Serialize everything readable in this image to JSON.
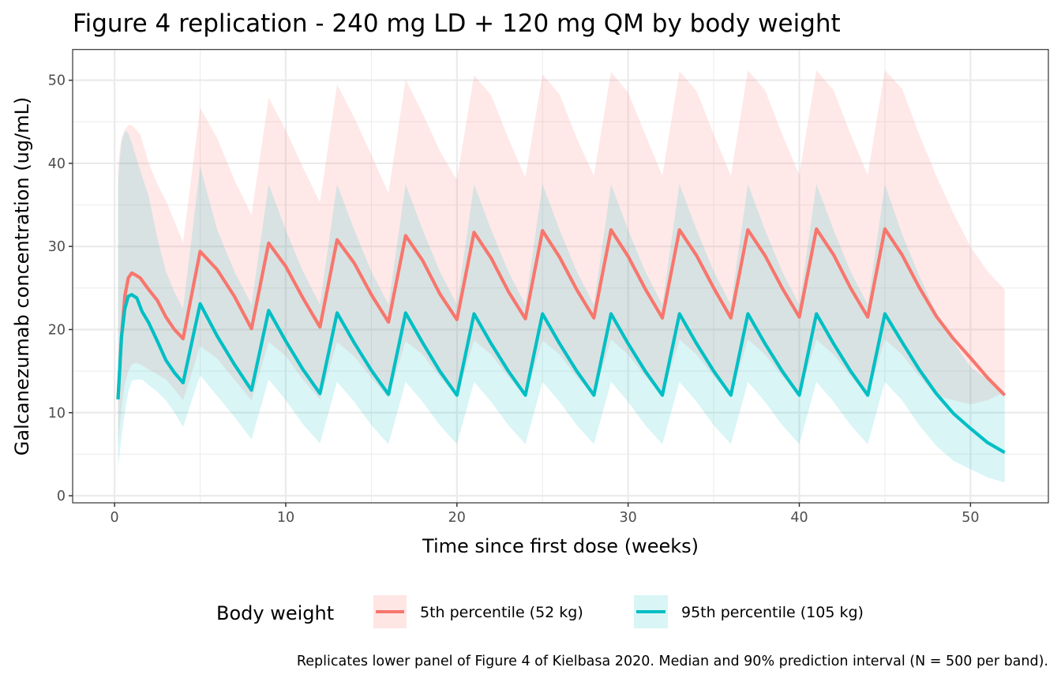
{
  "chart_data": {
    "type": "line",
    "title": "Figure 4 replication - 240 mg LD + 120 mg QM by body weight",
    "xlabel": "Time since first dose (weeks)",
    "ylabel": "Galcanezumab concentration (ug/mL)",
    "xlim": [
      -2.45,
      54.55
    ],
    "ylim": [
      -0.85,
      53.7
    ],
    "xticks": [
      0,
      10,
      20,
      30,
      40,
      50
    ],
    "yticks": [
      0,
      10,
      20,
      30,
      40,
      50
    ],
    "grid": true,
    "legend": {
      "title": "Body weight",
      "position": "bottom"
    },
    "caption": "Replicates lower panel of Figure 4 of Kielbasa 2020. Median and 90% prediction interval (N = 500 per band).",
    "series": [
      {
        "name": "5th percentile (52 kg)",
        "color": "#F8766D",
        "band_color": "#F8766D",
        "x": [
          0.2,
          0.4,
          0.6,
          0.8,
          1,
          1.2,
          1.5,
          2,
          2.5,
          3,
          3.5,
          4,
          5,
          6,
          7,
          8,
          9,
          10,
          11,
          12,
          13,
          14,
          15,
          16,
          17,
          18,
          19,
          20,
          21,
          22,
          23,
          24,
          25,
          26,
          27,
          28,
          29,
          30,
          31,
          32,
          33,
          34,
          35,
          36,
          37,
          38,
          39,
          40,
          41,
          42,
          43,
          44,
          45,
          46,
          47,
          48,
          49,
          50,
          51,
          52
        ],
        "median": [
          11.6,
          19.0,
          24.0,
          26.2,
          26.8,
          26.6,
          26.2,
          24.8,
          23.5,
          21.5,
          20.0,
          18.9,
          29.4,
          27.2,
          24.0,
          20.1,
          30.4,
          27.6,
          23.8,
          20.3,
          30.8,
          28.0,
          24.2,
          20.9,
          31.3,
          28.3,
          24.3,
          21.2,
          31.7,
          28.6,
          24.6,
          21.3,
          31.9,
          28.7,
          24.8,
          21.4,
          32.0,
          28.8,
          24.9,
          21.4,
          32.0,
          28.9,
          25.0,
          21.4,
          32.0,
          28.9,
          25.0,
          21.5,
          32.1,
          29.0,
          25.0,
          21.5,
          32.1,
          29.0,
          25.1,
          21.6,
          18.9,
          16.6,
          14.2,
          12.1
        ],
        "lower": [
          6.0,
          10.5,
          13.5,
          15.0,
          15.8,
          16.0,
          15.8,
          15.2,
          14.6,
          14.0,
          12.8,
          11.5,
          18.0,
          16.5,
          14.0,
          11.5,
          18.5,
          16.8,
          14.0,
          11.6,
          18.5,
          16.8,
          14.2,
          11.8,
          18.6,
          17.0,
          14.3,
          12.0,
          18.7,
          17.0,
          14.3,
          12.0,
          18.7,
          17.0,
          14.3,
          12.0,
          18.8,
          17.0,
          14.4,
          12.0,
          18.8,
          17.0,
          14.4,
          12.0,
          18.8,
          17.0,
          14.4,
          12.0,
          18.8,
          17.0,
          14.4,
          12.0,
          18.8,
          17.0,
          14.4,
          12.0,
          11.5,
          11.0,
          11.5,
          12.5
        ],
        "upper": [
          40.0,
          43.0,
          44.0,
          44.6,
          44.6,
          44.2,
          43.5,
          40.0,
          37.5,
          35.5,
          33.0,
          30.5,
          46.7,
          43.0,
          38.0,
          33.8,
          47.9,
          44.0,
          39.5,
          35.3,
          49.5,
          45.5,
          41.0,
          36.4,
          50.1,
          46.0,
          41.5,
          38.0,
          50.6,
          48.2,
          43.0,
          38.3,
          50.7,
          48.3,
          43.0,
          38.5,
          51.0,
          48.5,
          43.5,
          38.5,
          51.1,
          48.7,
          43.5,
          38.5,
          51.2,
          48.8,
          43.5,
          38.6,
          51.2,
          48.8,
          43.5,
          38.6,
          51.2,
          49.0,
          43.5,
          38.5,
          34.0,
          30.0,
          27.0,
          24.8
        ]
      },
      {
        "name": "95th percentile (105 kg)",
        "color": "#00BFC4",
        "band_color": "#00BFC4",
        "x": [
          0.2,
          0.4,
          0.6,
          0.8,
          1,
          1.3,
          1.6,
          2,
          2.5,
          3,
          3.5,
          4,
          5,
          6,
          7,
          8,
          9,
          10,
          11,
          12,
          13,
          14,
          15,
          16,
          17,
          18,
          19,
          20,
          21,
          22,
          23,
          24,
          25,
          26,
          27,
          28,
          29,
          30,
          31,
          32,
          33,
          34,
          35,
          36,
          37,
          38,
          39,
          40,
          41,
          42,
          43,
          44,
          45,
          46,
          47,
          48,
          49,
          50,
          51,
          52
        ],
        "median": [
          11.6,
          19.0,
          22.5,
          24.0,
          24.2,
          23.8,
          22.2,
          20.8,
          18.6,
          16.3,
          14.8,
          13.6,
          23.1,
          19.2,
          15.8,
          12.7,
          22.3,
          18.6,
          15.2,
          12.3,
          22.0,
          18.4,
          15.1,
          12.2,
          22.0,
          18.4,
          15.0,
          12.1,
          21.9,
          18.3,
          15.0,
          12.1,
          21.9,
          18.3,
          15.0,
          12.1,
          21.9,
          18.3,
          15.0,
          12.1,
          21.9,
          18.3,
          15.0,
          12.1,
          21.9,
          18.3,
          15.0,
          12.1,
          21.9,
          18.3,
          15.0,
          12.1,
          21.9,
          18.5,
          15.2,
          12.3,
          9.9,
          8.1,
          6.4,
          5.2
        ],
        "lower": [
          3.4,
          7.0,
          10.0,
          12.5,
          13.8,
          14.0,
          14.0,
          13.3,
          12.5,
          11.5,
          10.0,
          8.3,
          14.5,
          12.0,
          9.5,
          6.8,
          14.0,
          11.5,
          8.6,
          6.3,
          13.7,
          11.3,
          8.5,
          6.2,
          13.7,
          11.3,
          8.5,
          6.2,
          13.7,
          11.3,
          8.5,
          6.2,
          13.7,
          11.3,
          8.5,
          6.2,
          13.7,
          11.3,
          8.5,
          6.2,
          13.7,
          11.3,
          8.5,
          6.2,
          13.7,
          11.3,
          8.5,
          6.2,
          13.7,
          11.3,
          8.5,
          6.2,
          13.7,
          11.5,
          8.5,
          6.0,
          4.2,
          3.2,
          2.2,
          1.6
        ],
        "upper": [
          38.0,
          42.5,
          43.9,
          43.6,
          42.5,
          40.5,
          38.5,
          36.0,
          31.0,
          27.0,
          24.5,
          22.5,
          39.6,
          32.0,
          27.0,
          23.0,
          37.5,
          32.0,
          27.0,
          23.0,
          37.5,
          32.0,
          27.0,
          23.0,
          37.5,
          32.0,
          27.0,
          23.0,
          37.5,
          32.0,
          27.0,
          23.0,
          37.5,
          32.0,
          27.0,
          23.0,
          37.5,
          32.0,
          27.0,
          23.0,
          37.5,
          32.0,
          27.0,
          23.0,
          37.5,
          32.0,
          27.0,
          23.0,
          37.5,
          32.0,
          27.0,
          23.0,
          37.5,
          31.5,
          26.5,
          22.0,
          18.5,
          15.5,
          14.0,
          12.6
        ]
      }
    ]
  }
}
